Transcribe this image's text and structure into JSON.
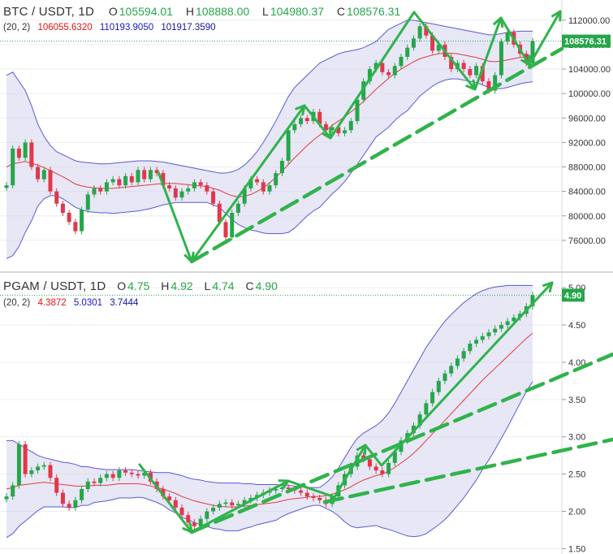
{
  "colors": {
    "up": "#26a64a",
    "down": "#e0384a",
    "arrow": "#2fb34a",
    "band_fill": "#c9c9ea",
    "band_line": "#5a5ad6",
    "basis_line": "#e23b3b",
    "grid": "#eeeeee",
    "divider": "#cccccc"
  },
  "panels": [
    {
      "header": {
        "symbol": "BTC / USDT, 1D",
        "o_label": "O",
        "o_value": "105594.01",
        "h_label": "H",
        "h_value": "108888.00",
        "l_label": "L",
        "l_value": "104980.37",
        "c_label": "C",
        "c_value": "108576.31"
      },
      "indicator": {
        "params": "(20, 2)",
        "basis": "106055.6320",
        "upper": "110193.9050",
        "lower": "101917.3590"
      },
      "last_price_tag": "108576.31"
    },
    {
      "header": {
        "symbol": "PGAM / USDT, 1D",
        "o_label": "O",
        "o_value": "4.75",
        "h_label": "H",
        "h_value": "4.92",
        "l_label": "L",
        "l_value": "4.74",
        "c_label": "C",
        "c_value": "4.90"
      },
      "indicator": {
        "params": "(20, 2)",
        "basis": "4.3872",
        "upper": "5.0301",
        "lower": "3.7444"
      },
      "last_price_tag": "4.90"
    }
  ],
  "chart_data": [
    {
      "type": "candlestick",
      "symbol": "BTC/USDT",
      "interval": "1D",
      "indicator": "Bollinger Bands (20, 2)",
      "y_ticks": [
        76000,
        80000,
        84000,
        88000,
        92000,
        96000,
        100000,
        104000,
        108000,
        112000
      ],
      "y_tick_labels": [
        "76000.00",
        "80000.00",
        "84000.00",
        "88000.00",
        "92000.00",
        "96000.00",
        "100000.00",
        "104000.00",
        "108000.00",
        "112000.00"
      ],
      "ylim": [
        72000,
        114500
      ],
      "closes": [
        85000,
        91000,
        89500,
        92000,
        88000,
        86000,
        87500,
        84000,
        82000,
        80500,
        79000,
        77500,
        81000,
        83500,
        84500,
        84000,
        85500,
        86000,
        85000,
        86500,
        85500,
        87500,
        86000,
        87500,
        87000,
        85000,
        84500,
        83000,
        84000,
        84500,
        85500,
        85000,
        84000,
        82000,
        79000,
        76500,
        80500,
        82000,
        84500,
        86000,
        85500,
        84000,
        85000,
        87000,
        89000,
        94000,
        95000,
        96000,
        95500,
        97000,
        95000,
        94000,
        94500,
        93500,
        94000,
        95500,
        99000,
        102000,
        104000,
        105000,
        103500,
        103000,
        104500,
        106000,
        107500,
        109000,
        111000,
        109500,
        107000,
        108000,
        106000,
        104000,
        105000,
        104000,
        103000,
        104500,
        102000,
        100500,
        103000,
        108500,
        110000,
        108000,
        106500,
        105000,
        108576
      ],
      "bb_upper": [
        103000,
        103500,
        102000,
        100500,
        98000,
        95000,
        93000,
        91500,
        90500,
        90000,
        89500,
        89000,
        88800,
        88700,
        88600,
        88500,
        88500,
        88600,
        88700,
        88800,
        88900,
        89000,
        89000,
        89000,
        88900,
        88800,
        88600,
        88400,
        88200,
        88000,
        87800,
        87600,
        87400,
        87200,
        87000,
        87000,
        87200,
        87600,
        88300,
        89300,
        90500,
        92000,
        93700,
        95500,
        97500,
        99500,
        101000,
        102000,
        103000,
        104000,
        105000,
        105500,
        106000,
        106500,
        106800,
        107000,
        107200,
        107500,
        108000,
        108500,
        109500,
        110500,
        111000,
        111500,
        112000,
        112000,
        111800,
        111600,
        111400,
        111200,
        111000,
        110800,
        110600,
        110400,
        110200,
        110000,
        109800,
        109600,
        109600,
        109800,
        110000,
        110100,
        110200,
        110200,
        110200
      ],
      "bb_basis": [
        88000,
        88500,
        88700,
        88900,
        88600,
        88300,
        87900,
        87400,
        86900,
        86400,
        85800,
        85200,
        84900,
        84700,
        84600,
        84500,
        84500,
        84500,
        84600,
        84700,
        84800,
        84900,
        85000,
        85100,
        85200,
        85300,
        85300,
        85300,
        85200,
        85100,
        85000,
        84900,
        84800,
        84500,
        84200,
        83700,
        83300,
        83100,
        83200,
        83500,
        84000,
        84600,
        85400,
        86300,
        87300,
        88400,
        89500,
        90500,
        91500,
        92400,
        93200,
        94000,
        94800,
        95500,
        96200,
        97000,
        97800,
        98700,
        99700,
        100700,
        101600,
        102500,
        103300,
        104000,
        104600,
        105200,
        105700,
        106000,
        106300,
        106500,
        106600,
        106600,
        106500,
        106300,
        106100,
        105900,
        105600,
        105300,
        105200,
        105300,
        105500,
        105700,
        105900,
        106000,
        106056
      ],
      "bb_lower": [
        73000,
        73500,
        75000,
        77300,
        79200,
        81600,
        82800,
        83300,
        83300,
        82800,
        82100,
        81400,
        81000,
        80700,
        80600,
        80500,
        80500,
        80400,
        80500,
        80600,
        80700,
        80800,
        81000,
        81200,
        81500,
        81800,
        82000,
        82200,
        82200,
        82200,
        82200,
        82200,
        82200,
        81800,
        81400,
        80400,
        79400,
        78600,
        78100,
        77700,
        77500,
        77200,
        77100,
        77100,
        77100,
        77300,
        78000,
        79000,
        80000,
        80800,
        81400,
        82500,
        83600,
        84500,
        85600,
        87000,
        88400,
        89900,
        91400,
        92900,
        93700,
        94500,
        95600,
        96500,
        97200,
        98400,
        99600,
        100400,
        101200,
        101800,
        102200,
        102400,
        102400,
        102200,
        102000,
        101800,
        101400,
        101000,
        100800,
        100800,
        101000,
        101300,
        101600,
        101800,
        101917
      ]
    },
    {
      "type": "candlestick",
      "symbol": "PGAM/USDT",
      "interval": "1D",
      "indicator": "Bollinger Bands (20, 2)",
      "y_ticks": [
        1.5,
        2.0,
        2.5,
        3.0,
        3.5,
        4.0,
        4.5,
        5.0
      ],
      "y_tick_labels": [
        "1.50",
        "2.00",
        "2.50",
        "3.00",
        "3.50",
        "4.00",
        "4.50",
        "5.00"
      ],
      "ylim": [
        1.45,
        5.1
      ],
      "closes": [
        2.2,
        2.35,
        2.9,
        2.5,
        2.55,
        2.6,
        2.62,
        2.45,
        2.25,
        2.1,
        2.05,
        2.15,
        2.3,
        2.4,
        2.38,
        2.45,
        2.5,
        2.45,
        2.55,
        2.52,
        2.5,
        2.48,
        2.52,
        2.4,
        2.3,
        2.2,
        2.15,
        2.05,
        1.95,
        1.85,
        1.8,
        1.9,
        2.0,
        2.05,
        2.1,
        2.12,
        2.08,
        2.1,
        2.15,
        2.18,
        2.22,
        2.25,
        2.28,
        2.3,
        2.32,
        2.3,
        2.28,
        2.25,
        2.2,
        2.18,
        2.15,
        2.1,
        2.2,
        2.35,
        2.5,
        2.6,
        2.75,
        2.7,
        2.6,
        2.55,
        2.5,
        2.65,
        2.8,
        2.95,
        3.05,
        3.15,
        3.3,
        3.45,
        3.6,
        3.75,
        3.85,
        3.95,
        4.05,
        4.15,
        4.25,
        4.3,
        4.35,
        4.4,
        4.45,
        4.5,
        4.55,
        4.6,
        4.65,
        4.75,
        4.9
      ],
      "bb_upper": [
        2.95,
        2.95,
        2.9,
        2.85,
        2.8,
        2.75,
        2.72,
        2.7,
        2.68,
        2.66,
        2.65,
        2.63,
        2.6,
        2.6,
        2.58,
        2.57,
        2.56,
        2.56,
        2.56,
        2.56,
        2.56,
        2.55,
        2.54,
        2.53,
        2.52,
        2.52,
        2.52,
        2.5,
        2.48,
        2.45,
        2.43,
        2.42,
        2.4,
        2.39,
        2.38,
        2.38,
        2.38,
        2.38,
        2.37,
        2.37,
        2.36,
        2.36,
        2.36,
        2.36,
        2.35,
        2.35,
        2.34,
        2.33,
        2.32,
        2.32,
        2.32,
        2.38,
        2.46,
        2.58,
        2.72,
        2.86,
        2.98,
        3.05,
        3.1,
        3.15,
        3.22,
        3.32,
        3.45,
        3.6,
        3.75,
        3.9,
        4.05,
        4.2,
        4.32,
        4.44,
        4.55,
        4.64,
        4.72,
        4.8,
        4.86,
        4.92,
        4.96,
        4.99,
        5.01,
        5.02,
        5.03,
        5.03,
        5.03,
        5.03,
        5.03
      ],
      "bb_basis": [
        2.3,
        2.32,
        2.35,
        2.36,
        2.37,
        2.38,
        2.39,
        2.38,
        2.37,
        2.36,
        2.35,
        2.34,
        2.34,
        2.34,
        2.35,
        2.35,
        2.35,
        2.36,
        2.37,
        2.37,
        2.37,
        2.37,
        2.36,
        2.34,
        2.32,
        2.3,
        2.27,
        2.24,
        2.2,
        2.17,
        2.14,
        2.12,
        2.1,
        2.08,
        2.07,
        2.06,
        2.06,
        2.06,
        2.07,
        2.08,
        2.09,
        2.1,
        2.11,
        2.12,
        2.14,
        2.16,
        2.17,
        2.18,
        2.19,
        2.2,
        2.2,
        2.21,
        2.23,
        2.26,
        2.29,
        2.33,
        2.38,
        2.42,
        2.45,
        2.48,
        2.5,
        2.54,
        2.59,
        2.65,
        2.71,
        2.78,
        2.86,
        2.95,
        3.04,
        3.13,
        3.22,
        3.31,
        3.4,
        3.49,
        3.58,
        3.67,
        3.76,
        3.84,
        3.92,
        4.0,
        4.08,
        4.16,
        4.24,
        4.32,
        4.39
      ],
      "bb_lower": [
        1.65,
        1.7,
        1.8,
        1.87,
        1.94,
        2.01,
        2.06,
        2.06,
        2.06,
        2.06,
        2.05,
        2.05,
        2.08,
        2.08,
        2.12,
        2.13,
        2.14,
        2.16,
        2.18,
        2.18,
        2.18,
        2.19,
        2.18,
        2.15,
        2.12,
        2.08,
        2.02,
        1.98,
        1.92,
        1.89,
        1.85,
        1.82,
        1.8,
        1.77,
        1.76,
        1.74,
        1.74,
        1.74,
        1.77,
        1.79,
        1.82,
        1.84,
        1.86,
        1.88,
        1.93,
        1.97,
        2.0,
        2.03,
        2.06,
        2.08,
        2.08,
        2.04,
        2.0,
        1.94,
        1.86,
        1.8,
        1.78,
        1.79,
        1.8,
        1.81,
        1.78,
        1.76,
        1.73,
        1.7,
        1.67,
        1.66,
        1.67,
        1.7,
        1.76,
        1.82,
        1.89,
        1.98,
        2.08,
        2.18,
        2.3,
        2.42,
        2.56,
        2.69,
        2.83,
        2.98,
        3.13,
        3.29,
        3.45,
        3.61,
        3.74
      ]
    }
  ]
}
